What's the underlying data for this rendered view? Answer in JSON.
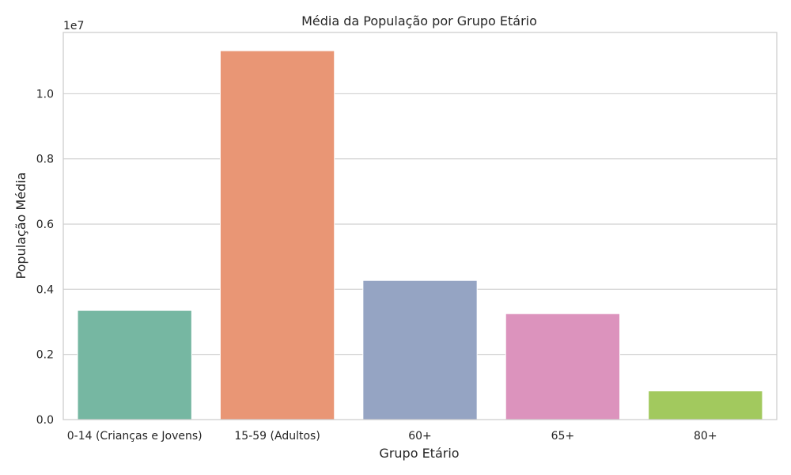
{
  "chart_data": {
    "type": "bar",
    "title": "Média da População por Grupo Etário",
    "xlabel": "Grupo Etário",
    "ylabel": "População Média",
    "offset_label": "1e7",
    "categories": [
      "0-14 (Crianças e Jovens)",
      "15-59 (Adultos)",
      "60+",
      "65+",
      "80+"
    ],
    "values": [
      3350000,
      11320000,
      4270000,
      3250000,
      880000
    ],
    "colors": [
      "#76b7a2",
      "#e99675",
      "#95a4c3",
      "#dc93bd",
      "#a2c95e"
    ],
    "ylim": [
      0,
      11880000
    ],
    "yticks": [
      0,
      2000000,
      4000000,
      6000000,
      8000000,
      10000000
    ],
    "ytick_labels": [
      "0.0",
      "0.2",
      "0.4",
      "0.6",
      "0.8",
      "1.0"
    ],
    "grid": "horizontal"
  }
}
